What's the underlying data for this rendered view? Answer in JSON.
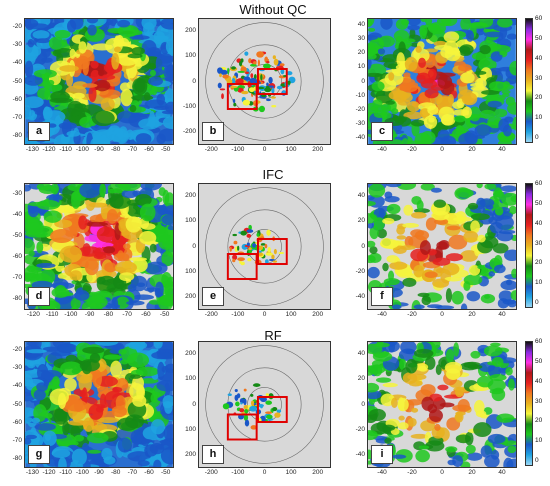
{
  "titles": [
    "Without QC",
    "IFC",
    "RF"
  ],
  "rows": [
    {
      "letters": [
        "a",
        "b",
        "c"
      ],
      "left_xticks": [
        "-130",
        "-120",
        "-110",
        "-100",
        "-90",
        "-80",
        "-70",
        "-60",
        "-50"
      ],
      "left_yticks": [
        "-20",
        "-30",
        "-40",
        "-50",
        "-60",
        "-70",
        "-80"
      ],
      "mid_xticks": [
        "-200",
        "-100",
        "0",
        "100",
        "200"
      ],
      "mid_yticks": [
        "200",
        "100",
        "0",
        "-100",
        "-200"
      ],
      "right_xticks": [
        "-40",
        "-20",
        "0",
        "20",
        "40"
      ],
      "right_yticks": [
        "40",
        "30",
        "20",
        "10",
        "0",
        "-10",
        "-20",
        "-30",
        "-40"
      ]
    },
    {
      "letters": [
        "d",
        "e",
        "f"
      ],
      "left_xticks": [
        "-120",
        "-110",
        "-100",
        "-90",
        "-80",
        "-70",
        "-60",
        "-50"
      ],
      "left_yticks": [
        "-30",
        "-40",
        "-50",
        "-60",
        "-70",
        "-80"
      ],
      "mid_xticks": [
        "-200",
        "-100",
        "0",
        "100",
        "200"
      ],
      "mid_yticks": [
        "200",
        "100",
        "0",
        "100",
        "200"
      ],
      "right_xticks": [
        "-40",
        "-20",
        "0",
        "20",
        "40"
      ],
      "right_yticks": [
        "40",
        "20",
        "0",
        "-20",
        "-40"
      ]
    },
    {
      "letters": [
        "g",
        "h",
        "i"
      ],
      "left_xticks": [
        "-130",
        "-120",
        "-110",
        "-100",
        "-90",
        "-80",
        "-70",
        "-60",
        "-50"
      ],
      "left_yticks": [
        "-20",
        "-30",
        "-40",
        "-50",
        "-60",
        "-70",
        "-80"
      ],
      "mid_xticks": [
        "-200",
        "-100",
        "0",
        "100",
        "200"
      ],
      "mid_yticks": [
        "200",
        "100",
        "0",
        "100",
        "200"
      ],
      "right_xticks": [
        "-40",
        "-20",
        "0",
        "20",
        "40"
      ],
      "right_yticks": [
        "40",
        "20",
        "0",
        "-20",
        "-40"
      ]
    }
  ],
  "colorbar": {
    "ticks": [
      "60",
      "50",
      "40",
      "30",
      "20",
      "10",
      "0"
    ],
    "colors": [
      "#e8e8e8",
      "#9ad7f5",
      "#1fa3e0",
      "#1a57c8",
      "#1ec81e",
      "#158a15",
      "#f6f53c",
      "#e8b21f",
      "#f07820",
      "#e52020",
      "#b01818",
      "#ff2fe4",
      "#8a2be2",
      "#111111"
    ]
  }
}
